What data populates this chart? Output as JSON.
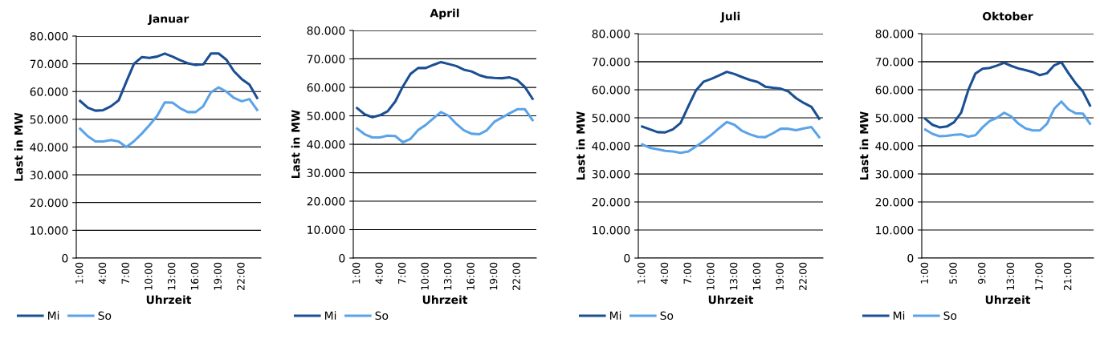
{
  "chart_data": [
    {
      "type": "line",
      "title": "Januar",
      "xlabel": "Uhrzeit",
      "ylabel": "Last in MW",
      "categories": [
        "1:00",
        null,
        null,
        "4:00",
        null,
        null,
        "7:00",
        null,
        null,
        "10:00",
        null,
        null,
        "13:00",
        null,
        null,
        "16:00",
        null,
        null,
        "19:00",
        null,
        null,
        "22:00",
        null,
        null
      ],
      "series": [
        {
          "name": "Mi",
          "color": "#1a4f94",
          "values": [
            56600,
            54200,
            53100,
            53300,
            54700,
            56800,
            63500,
            70000,
            72400,
            72100,
            72600,
            73700,
            72600,
            71300,
            70200,
            69600,
            69800,
            73700,
            73700,
            71500,
            67300,
            64500,
            62500,
            57700
          ]
        },
        {
          "name": "So",
          "color": "#5ba3e8",
          "values": [
            46600,
            43900,
            42000,
            42000,
            42500,
            42000,
            40000,
            42100,
            44800,
            47900,
            51200,
            56100,
            56000,
            54000,
            52600,
            52600,
            54700,
            59700,
            61500,
            60000,
            57700,
            56500,
            57300,
            53400
          ]
        }
      ],
      "ylim": [
        0,
        80000
      ],
      "yticks": [
        {
          "value": 0,
          "label": "0"
        },
        {
          "value": 10000,
          "label": "10.000"
        },
        {
          "value": 20000,
          "label": "20.000"
        },
        {
          "value": 30000,
          "label": "30.000"
        },
        {
          "value": 40000,
          "label": "40.000"
        },
        {
          "value": 50000,
          "label": "50.000"
        },
        {
          "value": 60000,
          "label": "60.000"
        },
        {
          "value": 70000,
          "label": "70.000"
        },
        {
          "value": 80000,
          "label": "80.000"
        }
      ],
      "grid": "y",
      "legend": "bottom left",
      "marker": "none",
      "line_style": "solid"
    },
    {
      "type": "line",
      "title": "April",
      "xlabel": "Uhrzeit",
      "ylabel": "Last in MW",
      "categories": [
        "1:00",
        null,
        null,
        "4:00",
        null,
        null,
        "7:00",
        null,
        null,
        "10:00",
        null,
        null,
        "13:00",
        null,
        null,
        "16:00",
        null,
        null,
        "19:00",
        null,
        null,
        "22:00",
        null,
        null
      ],
      "series": [
        {
          "name": "Mi",
          "color": "#1a4f94",
          "values": [
            52700,
            50500,
            49500,
            50200,
            51600,
            55000,
            60300,
            64700,
            66800,
            66800,
            67900,
            68900,
            68200,
            67500,
            66200,
            65600,
            64300,
            63500,
            63300,
            63200,
            63500,
            62600,
            60100,
            56000
          ]
        },
        {
          "name": "So",
          "color": "#5ba3e8",
          "values": [
            45500,
            43500,
            42400,
            42400,
            43000,
            42900,
            40700,
            41900,
            45000,
            46800,
            49100,
            51300,
            50000,
            47200,
            44900,
            43700,
            43500,
            44900,
            47900,
            49400,
            50900,
            52300,
            52300,
            48500
          ]
        }
      ],
      "ylim": [
        0,
        80000
      ],
      "yticks": [
        {
          "value": 0,
          "label": "0"
        },
        {
          "value": 10000,
          "label": "10.000"
        },
        {
          "value": 20000,
          "label": "20.000"
        },
        {
          "value": 30000,
          "label": "30.000"
        },
        {
          "value": 40000,
          "label": "40.000"
        },
        {
          "value": 50000,
          "label": "50.000"
        },
        {
          "value": 60000,
          "label": "60.000"
        },
        {
          "value": 70000,
          "label": "70.000"
        },
        {
          "value": 80000,
          "label": "80.000"
        }
      ],
      "grid": "y",
      "legend": "bottom left",
      "marker": "none",
      "line_style": "solid"
    },
    {
      "type": "line",
      "title": "Juli",
      "xlabel": "Uhrzeit",
      "ylabel": "Last in MW",
      "categories": [
        "1:00",
        null,
        null,
        "4:00",
        null,
        null,
        "7:00",
        null,
        null,
        "10:00",
        null,
        null,
        "13:00",
        null,
        null,
        "16:00",
        null,
        null,
        "19:00",
        null,
        null,
        "22:00",
        null,
        null
      ],
      "series": [
        {
          "name": "Mi",
          "color": "#1a4f94",
          "values": [
            46900,
            45900,
            44900,
            44800,
            45900,
            48200,
            54100,
            59800,
            62900,
            63900,
            65100,
            66400,
            65600,
            64500,
            63500,
            62800,
            61100,
            60700,
            60400,
            59400,
            57000,
            55300,
            53900,
            49700
          ]
        },
        {
          "name": "So",
          "color": "#5ba3e8",
          "values": [
            40500,
            39300,
            38800,
            38200,
            38000,
            37500,
            38000,
            39800,
            41700,
            43900,
            46300,
            48500,
            47500,
            45300,
            44100,
            43200,
            43100,
            44500,
            46100,
            46100,
            45600,
            46200,
            46700,
            43100
          ]
        }
      ],
      "ylim": [
        0,
        80000
      ],
      "yticks": [
        {
          "value": 0,
          "label": "0"
        },
        {
          "value": 10000,
          "label": "10.000"
        },
        {
          "value": 20000,
          "label": "20.000"
        },
        {
          "value": 30000,
          "label": "30.000"
        },
        {
          "value": 40000,
          "label": "40.000"
        },
        {
          "value": 50000,
          "label": "50.000"
        },
        {
          "value": 60000,
          "label": "60.000"
        },
        {
          "value": 70000,
          "label": "70.000"
        },
        {
          "value": 80000,
          "label": "80.000"
        }
      ],
      "grid": "y",
      "legend": "bottom left",
      "marker": "none",
      "line_style": "solid"
    },
    {
      "type": "line",
      "title": "Oktober",
      "xlabel": "Uhrzeit",
      "ylabel": "Last in MW",
      "categories": [
        "1:00",
        null,
        null,
        null,
        "5:00",
        null,
        null,
        null,
        "9:00",
        null,
        null,
        null,
        "13:00",
        null,
        null,
        null,
        "17:00",
        null,
        null,
        null,
        "21:00",
        null,
        null,
        null
      ],
      "series": [
        {
          "name": "Mi",
          "color": "#1a4f94",
          "values": [
            49600,
            47500,
            46600,
            46900,
            48400,
            51800,
            59900,
            65800,
            67500,
            67800,
            68600,
            69600,
            68500,
            67600,
            67000,
            66300,
            65200,
            65900,
            68700,
            69800,
            65900,
            62300,
            59400,
            54400
          ]
        },
        {
          "name": "So",
          "color": "#5ba3e8",
          "values": [
            45800,
            44300,
            43400,
            43600,
            43900,
            44100,
            43300,
            43800,
            46600,
            48900,
            50000,
            51800,
            50500,
            47900,
            46200,
            45500,
            45500,
            47900,
            53200,
            55800,
            53000,
            51600,
            51500,
            47900
          ]
        }
      ],
      "ylim": [
        0,
        80000
      ],
      "yticks": [
        {
          "value": 0,
          "label": "0"
        },
        {
          "value": 10000,
          "label": "10.000"
        },
        {
          "value": 20000,
          "label": "20.000"
        },
        {
          "value": 30000,
          "label": "30.000"
        },
        {
          "value": 40000,
          "label": "40.000"
        },
        {
          "value": 50000,
          "label": "50.000"
        },
        {
          "value": 60000,
          "label": "60.000"
        },
        {
          "value": 70000,
          "label": "70.000"
        },
        {
          "value": 80000,
          "label": "80.000"
        }
      ],
      "grid": "y",
      "legend": "bottom left",
      "marker": "none",
      "line_style": "solid"
    }
  ]
}
